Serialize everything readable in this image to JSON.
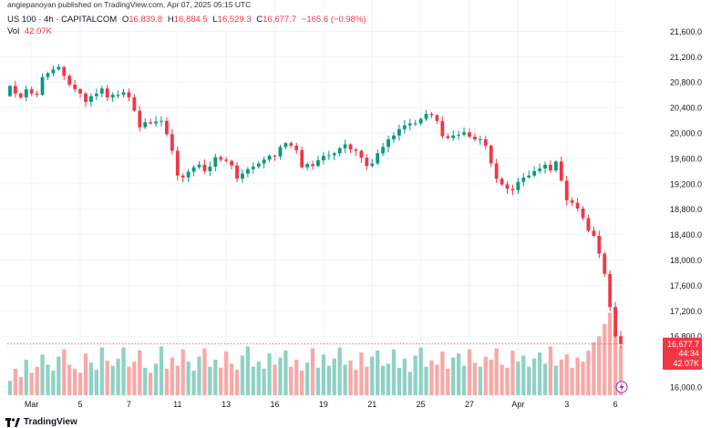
{
  "header": {
    "publisher": "angiepanoyan published on TradingView.com, Apr 07, 2025 05:15 UTC",
    "symbol": "US 100 · 4h · CAPITALCOM",
    "o_label": "O",
    "o_value": "16,839.8",
    "h_label": "H",
    "h_value": "16,884.5",
    "l_label": "L",
    "l_value": "16,529.3",
    "c_label": "C",
    "c_value": "16,677.7",
    "change": "−165.6 (−0.98%)",
    "vol_label": "Vol",
    "vol_value": "42.07K"
  },
  "footer": {
    "logo_text": "TradingView"
  },
  "colors": {
    "up": "#089981",
    "down": "#f23645",
    "up_vol": "#8fd1c4",
    "down_vol": "#f7a9a7",
    "grid": "#f0f3fa"
  },
  "chart_data": {
    "type": "candlestick",
    "y_ticks": [
      "21,600.0",
      "21,200.0",
      "20,800.0",
      "20,400.0",
      "20,000.0",
      "19,600.0",
      "19,200.0",
      "18,800.0",
      "18,400.0",
      "18,000.0",
      "17,600.0",
      "17,200.0",
      "16,800.0",
      "16,000.0"
    ],
    "ylim": [
      15900,
      21950
    ],
    "x_ticks": [
      "Mar",
      "5",
      "7",
      "11",
      "13",
      "16",
      "19",
      "21",
      "25",
      "27",
      "Apr",
      "3",
      "6"
    ],
    "last_price": "16,677.7",
    "countdown": "44:34",
    "volume_badge": "42.07K",
    "closes": [
      20740,
      20620,
      20560,
      20690,
      20620,
      20600,
      20880,
      20940,
      21000,
      21040,
      20900,
      20760,
      20690,
      20620,
      20490,
      20580,
      20620,
      20700,
      20560,
      20600,
      20600,
      20640,
      20560,
      20350,
      20090,
      20170,
      20150,
      20180,
      20190,
      19980,
      19720,
      19330,
      19300,
      19390,
      19460,
      19500,
      19400,
      19470,
      19620,
      19580,
      19560,
      19490,
      19280,
      19360,
      19430,
      19470,
      19520,
      19580,
      19640,
      19630,
      19780,
      19840,
      19800,
      19730,
      19460,
      19510,
      19480,
      19570,
      19640,
      19650,
      19680,
      19760,
      19820,
      19740,
      19720,
      19610,
      19480,
      19520,
      19680,
      19780,
      19900,
      19960,
      20060,
      20120,
      20150,
      20150,
      20220,
      20300,
      20280,
      20190,
      19950,
      19920,
      19960,
      19970,
      20010,
      19940,
      19900,
      19900,
      19800,
      19520,
      19280,
      19190,
      19120,
      19100,
      19230,
      19300,
      19330,
      19400,
      19440,
      19500,
      19410,
      19550,
      19250,
      18940,
      18900,
      18810,
      18660,
      18460,
      18380,
      18100,
      17780,
      17260,
      16800,
      16677.7
    ],
    "volumes": [
      14,
      26,
      18,
      35,
      22,
      28,
      40,
      30,
      24,
      38,
      45,
      30,
      26,
      22,
      41,
      32,
      25,
      47,
      34,
      29,
      36,
      47,
      28,
      33,
      44,
      27,
      22,
      31,
      48,
      26,
      37,
      29,
      45,
      33,
      24,
      38,
      46,
      28,
      35,
      27,
      43,
      31,
      25,
      39,
      48,
      28,
      33,
      26,
      41,
      30,
      37,
      44,
      28,
      35,
      24,
      32,
      46,
      27,
      40,
      29,
      36,
      47,
      30,
      34,
      25,
      42,
      28,
      38,
      44,
      29,
      31,
      45,
      27,
      36,
      23,
      39,
      47,
      28,
      34,
      30,
      43,
      26,
      37,
      41,
      29,
      45,
      32,
      28,
      38,
      35,
      46,
      30,
      27,
      44,
      33,
      39,
      28,
      36,
      42,
      31,
      48,
      29,
      35,
      40,
      27,
      37,
      33,
      44,
      52,
      58,
      70,
      81,
      63,
      48
    ]
  }
}
